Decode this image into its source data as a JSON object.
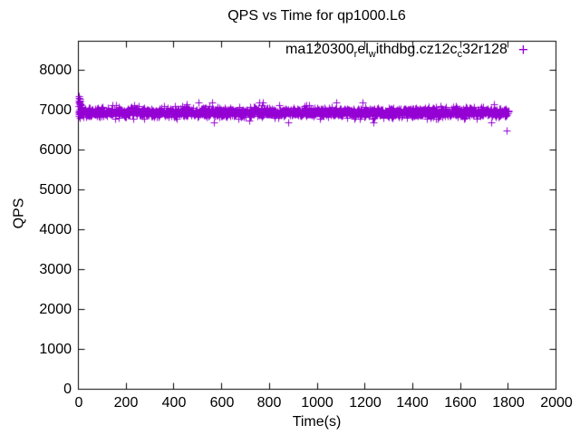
{
  "title": "QPS vs Time for qp1000.L6",
  "axes": {
    "x_label": "Time(s)",
    "y_label": "QPS"
  },
  "legend": {
    "marker_glyph": "+",
    "marker_color": "#9400D3",
    "label_plain": "ma120300_rel_withdbg.cz12c_c32r128",
    "label_parts": [
      {
        "t": "ma120300"
      },
      {
        "s": "r"
      },
      {
        "t": "el"
      },
      {
        "s": "w"
      },
      {
        "t": "ithdbg.cz12c"
      },
      {
        "s": "c"
      },
      {
        "t": "32r128"
      }
    ]
  },
  "plot_style": {
    "background": "#ffffff",
    "border_color": "#000000",
    "text_color": "#000000",
    "grid": "off"
  },
  "chart_data": {
    "type": "scatter",
    "title": "QPS vs Time for qp1000.L6",
    "xlabel": "Time(s)",
    "ylabel": "QPS",
    "xlim": [
      0,
      2000
    ],
    "ylim": [
      0,
      8730
    ],
    "xticks": [
      0,
      200,
      400,
      600,
      800,
      1000,
      1200,
      1400,
      1600,
      1800,
      2000
    ],
    "yticks": [
      0,
      1000,
      2000,
      3000,
      4000,
      5000,
      6000,
      7000,
      8000
    ],
    "grid": false,
    "legend_position": "top-right-inside",
    "series": [
      {
        "name": "ma120300_rel_withdbg.cz12c_c32r128",
        "marker": "plus",
        "color": "#9400D3",
        "steady_band": {
          "t_start_s": 0,
          "t_end_s": 1800,
          "step_s": 1,
          "mean_qps": 6950,
          "std_qps": 55,
          "min_qps": 6700,
          "max_qps": 7200,
          "outlier_chance": 0.02,
          "outlier_extra_qps": 300,
          "seed": 7
        },
        "initial_transient_points": [
          [
            0,
            7200
          ],
          [
            1,
            7350
          ],
          [
            1,
            7100
          ],
          [
            2,
            7300
          ],
          [
            2,
            7000
          ],
          [
            3,
            7250
          ],
          [
            3,
            6850
          ],
          [
            4,
            7280
          ],
          [
            4,
            7150
          ],
          [
            5,
            7220
          ],
          [
            5,
            6800
          ],
          [
            6,
            7180
          ],
          [
            7,
            7230
          ],
          [
            8,
            7120
          ],
          [
            9,
            7160
          ],
          [
            10,
            7080
          ],
          [
            12,
            7060
          ],
          [
            14,
            7020
          ]
        ],
        "outlier_points": [
          [
            1795,
            6500
          ]
        ]
      }
    ]
  }
}
